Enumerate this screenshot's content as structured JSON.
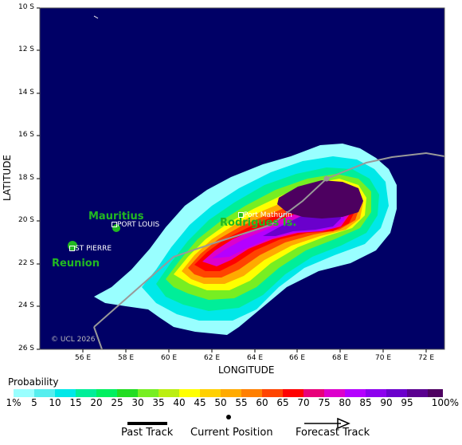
{
  "axes": {
    "ylabel": "LATITUDE",
    "xlabel": "LONGITUDE",
    "lat_ticks": [
      "10 S",
      "12 S",
      "14 S",
      "16 S",
      "18 S",
      "20 S",
      "22 S",
      "24 S",
      "26 S"
    ],
    "lon_ticks": [
      "56 E",
      "58 E",
      "60 E",
      "62 E",
      "64 E",
      "66 E",
      "68 E",
      "70 E",
      "72 E"
    ]
  },
  "places": {
    "mauritius": "Mauritius",
    "port_louis": "PORT LOUIS",
    "reunion": "Reunion",
    "st_pierre": "ST PIERRE",
    "rodrigues": "Rodrigues Is.",
    "port_mathurin": "Port Mathurin"
  },
  "copyright": "© UCL 2026",
  "colorbar": {
    "title": "Probability",
    "labels": [
      "1%",
      "5",
      "10",
      "15",
      "20",
      "25",
      "30",
      "35",
      "40",
      "45",
      "50",
      "55",
      "60",
      "65",
      "70",
      "75",
      "80",
      "85",
      "90",
      "95",
      "100%"
    ],
    "colors": [
      "#99ffff",
      "#55eeee",
      "#00e8e8",
      "#00ee99",
      "#00f060",
      "#22dd22",
      "#77ee22",
      "#bbee11",
      "#ffff00",
      "#ffd000",
      "#ffaa00",
      "#ff7f00",
      "#ff4400",
      "#ff0000",
      "#e8007a",
      "#dd00cc",
      "#b400ff",
      "#8c00ee",
      "#6a00cc",
      "#5a0090",
      "#4d0060"
    ]
  },
  "legend": {
    "past": "Past Track",
    "current": "Current Position",
    "forecast": "Forecast Track"
  },
  "colors": {
    "sea": "#000066",
    "land": "#22b822",
    "track": "#999999"
  }
}
